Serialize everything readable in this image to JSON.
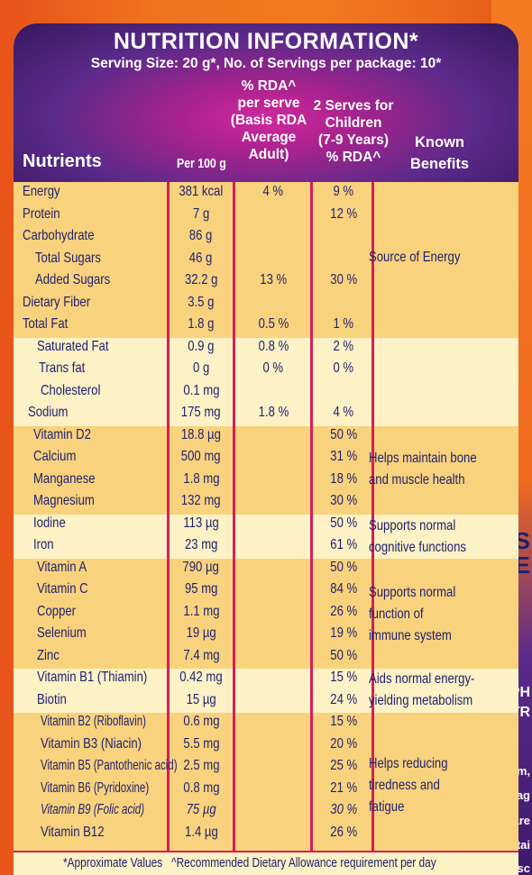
{
  "title": "NUTRITION INFORMATION*",
  "serving": "Serving Size: 20 g*, No. of Servings per package: 10*",
  "headers": {
    "nutrients": "Nutrients",
    "per100": "Per 100 g",
    "rda_lines": [
      "% RDA^",
      "per serve",
      "(Basis RDA",
      "Average",
      "Adult)"
    ],
    "kids_lines": [
      "2 Serves for",
      "Children",
      "(7-9 Years)",
      "% RDA^"
    ],
    "known_lines": [
      "Known",
      "Benefits"
    ]
  },
  "rows": [
    {
      "name": "Energy",
      "per100": "381 kcal",
      "rda": "4 %",
      "kids": "9 %"
    },
    {
      "name": "Protein",
      "per100": "7 g",
      "rda": "",
      "kids": "12 %"
    },
    {
      "name": "Carbohydrate",
      "per100": "86 g",
      "rda": "",
      "kids": ""
    },
    {
      "name": "Total Sugars",
      "per100": "46 g",
      "rda": "",
      "kids": ""
    },
    {
      "name": "Added Sugars",
      "per100": "32.2 g",
      "rda": "13 %",
      "kids": "30 %"
    },
    {
      "name": "Dietary Fiber",
      "per100": "3.5 g",
      "rda": "",
      "kids": ""
    },
    {
      "name": "Total Fat",
      "per100": "1.8 g",
      "rda": "0.5 %",
      "kids": "1 %"
    },
    {
      "name": "Saturated Fat",
      "per100": "0.9 g",
      "rda": "0.8 %",
      "kids": "2 %"
    },
    {
      "name": "Trans fat",
      "per100": "0 g",
      "rda": "0 %",
      "kids": "0 %"
    },
    {
      "name": "Cholesterol",
      "per100": "0.1 mg",
      "rda": "",
      "kids": ""
    },
    {
      "name": "Sodium",
      "per100": "175 mg",
      "rda": "1.8 %",
      "kids": "4 %"
    },
    {
      "name": "Vitamin D2",
      "per100": "18.8 µg",
      "rda": "",
      "kids": "50 %"
    },
    {
      "name": "Calcium",
      "per100": "500 mg",
      "rda": "",
      "kids": "31 %"
    },
    {
      "name": "Manganese",
      "per100": "1.8 mg",
      "rda": "",
      "kids": "18 %"
    },
    {
      "name": "Magnesium",
      "per100": "132 mg",
      "rda": "",
      "kids": "30 %"
    },
    {
      "name": "Iodine",
      "per100": "113 µg",
      "rda": "",
      "kids": "50 %"
    },
    {
      "name": "Iron",
      "per100": "23 mg",
      "rda": "",
      "kids": "61 %"
    },
    {
      "name": "Vitamin A",
      "per100": "790 µg",
      "rda": "",
      "kids": "50 %"
    },
    {
      "name": "Vitamin C",
      "per100": "95 mg",
      "rda": "",
      "kids": "84 %"
    },
    {
      "name": "Copper",
      "per100": "1.1 mg",
      "rda": "",
      "kids": "26 %"
    },
    {
      "name": "Selenium",
      "per100": "19 µg",
      "rda": "",
      "kids": "19 %"
    },
    {
      "name": "Zinc",
      "per100": "7.4 mg",
      "rda": "",
      "kids": "50 %"
    },
    {
      "name": "Vitamin B1 (Thiamin)",
      "per100": "0.42 mg",
      "rda": "",
      "kids": "15 %"
    },
    {
      "name": "Biotin",
      "per100": "15 µg",
      "rda": "",
      "kids": "24 %"
    },
    {
      "name": "Vitamin B2 (Riboflavin)",
      "per100": "0.6 mg",
      "rda": "",
      "kids": "15 %"
    },
    {
      "name": "Vitamin B3 (Niacin)",
      "per100": "5.5 mg",
      "rda": "",
      "kids": "20 %"
    },
    {
      "name": "Vitamin B5 (Pantothenic acid)",
      "per100": "2.5 mg",
      "rda": "",
      "kids": "25 %"
    },
    {
      "name": "Vitamin B6 (Pyridoxine)",
      "per100": "0.8 mg",
      "rda": "",
      "kids": "21 %"
    },
    {
      "name": "Vitamin B9 (Folic acid)",
      "per100": "75 µg",
      "rda": "",
      "kids": "30 %"
    },
    {
      "name": "Vitamin B12",
      "per100": "1.4 µg",
      "rda": "",
      "kids": "26 %"
    }
  ],
  "benefits": [
    {
      "lines": [
        "Source of Energy"
      ]
    },
    {
      "lines": [
        "Helps maintain bone",
        "and muscle health"
      ]
    },
    {
      "lines": [
        "Supports normal",
        "cognitive functions"
      ]
    },
    {
      "lines": [
        "Supports normal",
        "function of",
        "immune system"
      ]
    },
    {
      "lines": [
        "Aids normal energy-",
        "yielding metabolism"
      ]
    },
    {
      "lines": [
        "Helps reducing",
        "tiredness and",
        "fatigue"
      ]
    }
  ],
  "footer": {
    "approx": "*Approximate Values",
    "rda_note": "^Recommended Dietary Allowance requirement per day"
  },
  "side_text": {
    "frag1": "S",
    "frag2": "E",
    "frag3": "PH",
    "frag4": "STR",
    "frag5": "Calcium,",
    "frag6": "and Mag",
    "frag7": "are",
    "frag8": "maintai",
    "frag9": "Musc"
  },
  "colors": {
    "header_purple": "#36185f",
    "header_magenta": "#d1279e",
    "band_dark": "#f9d27e",
    "band_light": "#fdf1c6",
    "rule_red": "#d61f58",
    "text_navy": "#1d1f6e",
    "package_orange": "#f47a22"
  }
}
